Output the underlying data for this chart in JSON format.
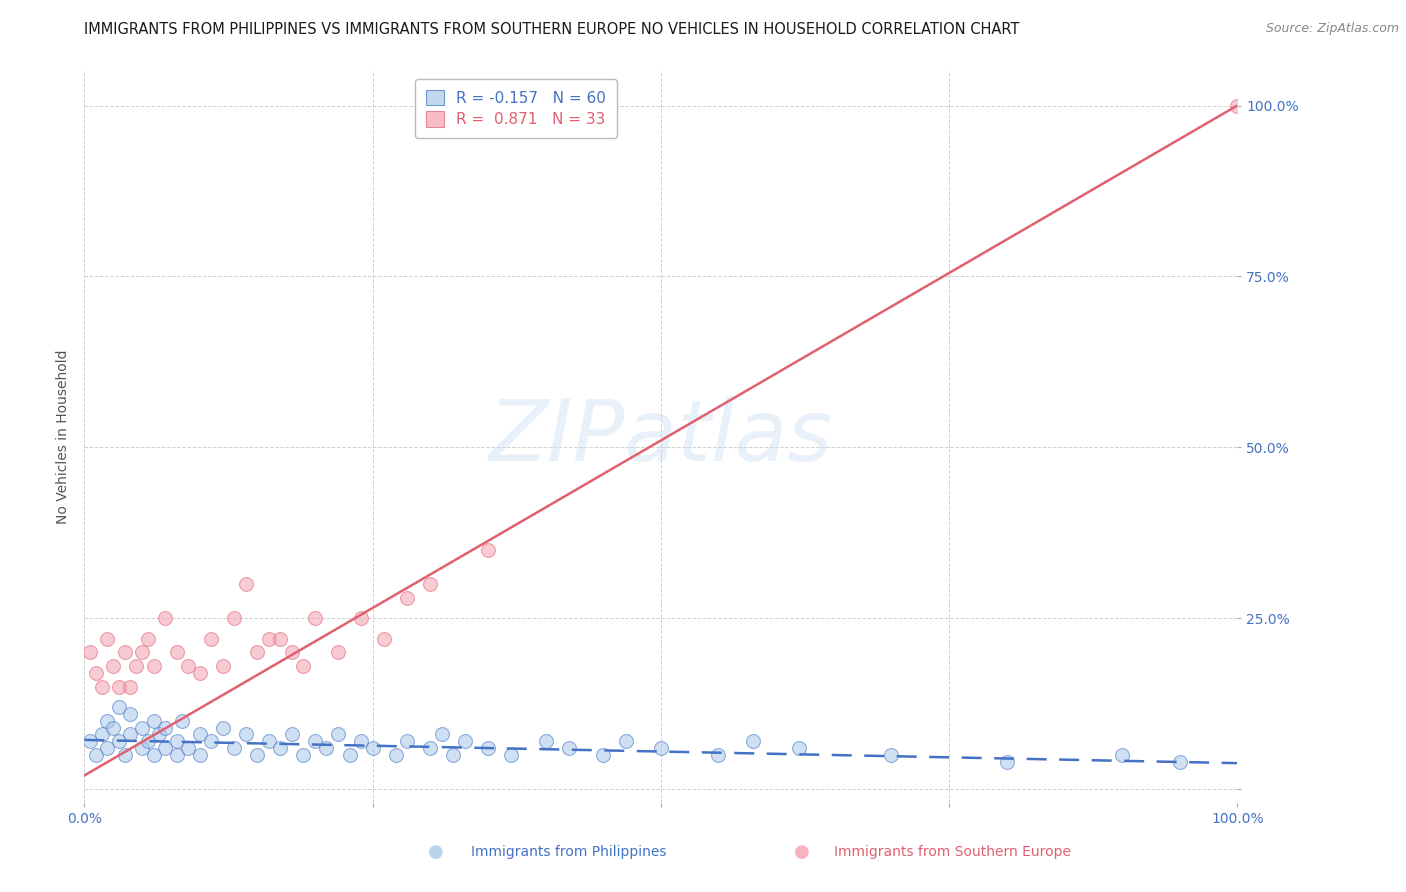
{
  "title": "IMMIGRANTS FROM PHILIPPINES VS IMMIGRANTS FROM SOUTHERN EUROPE NO VEHICLES IN HOUSEHOLD CORRELATION CHART",
  "source": "Source: ZipAtlas.com",
  "ylabel": "No Vehicles in Household",
  "xlim": [
    0.0,
    1.0
  ],
  "ylim": [
    -0.02,
    1.05
  ],
  "blue_R": -0.157,
  "blue_N": 60,
  "pink_R": 0.871,
  "pink_N": 33,
  "blue_color": "#a8c8e8",
  "pink_color": "#f4a0b0",
  "blue_line_color": "#4472c4",
  "pink_line_color": "#e06070",
  "legend_label_blue": "Immigrants from Philippines",
  "legend_label_pink": "Immigrants from Southern Europe",
  "watermark_text": "ZIPatlas",
  "background_color": "#ffffff",
  "grid_color": "#cccccc",
  "blue_scatter_x": [
    0.005,
    0.01,
    0.015,
    0.02,
    0.02,
    0.025,
    0.03,
    0.03,
    0.035,
    0.04,
    0.04,
    0.05,
    0.05,
    0.055,
    0.06,
    0.06,
    0.065,
    0.07,
    0.07,
    0.08,
    0.08,
    0.085,
    0.09,
    0.1,
    0.1,
    0.11,
    0.12,
    0.13,
    0.14,
    0.15,
    0.16,
    0.17,
    0.18,
    0.19,
    0.2,
    0.21,
    0.22,
    0.23,
    0.24,
    0.25,
    0.27,
    0.28,
    0.3,
    0.31,
    0.32,
    0.33,
    0.35,
    0.37,
    0.4,
    0.42,
    0.45,
    0.47,
    0.5,
    0.55,
    0.58,
    0.62,
    0.7,
    0.8,
    0.9,
    0.95
  ],
  "blue_scatter_y": [
    0.07,
    0.05,
    0.08,
    0.06,
    0.1,
    0.09,
    0.07,
    0.12,
    0.05,
    0.08,
    0.11,
    0.06,
    0.09,
    0.07,
    0.1,
    0.05,
    0.08,
    0.06,
    0.09,
    0.07,
    0.05,
    0.1,
    0.06,
    0.08,
    0.05,
    0.07,
    0.09,
    0.06,
    0.08,
    0.05,
    0.07,
    0.06,
    0.08,
    0.05,
    0.07,
    0.06,
    0.08,
    0.05,
    0.07,
    0.06,
    0.05,
    0.07,
    0.06,
    0.08,
    0.05,
    0.07,
    0.06,
    0.05,
    0.07,
    0.06,
    0.05,
    0.07,
    0.06,
    0.05,
    0.07,
    0.06,
    0.05,
    0.04,
    0.05,
    0.04
  ],
  "pink_scatter_x": [
    0.005,
    0.01,
    0.015,
    0.02,
    0.025,
    0.03,
    0.035,
    0.04,
    0.045,
    0.05,
    0.055,
    0.06,
    0.07,
    0.08,
    0.09,
    0.1,
    0.11,
    0.12,
    0.13,
    0.14,
    0.15,
    0.16,
    0.17,
    0.18,
    0.19,
    0.2,
    0.22,
    0.24,
    0.26,
    0.28,
    0.3,
    0.35,
    1.0
  ],
  "pink_scatter_y": [
    0.2,
    0.17,
    0.15,
    0.22,
    0.18,
    0.15,
    0.2,
    0.15,
    0.18,
    0.2,
    0.22,
    0.18,
    0.25,
    0.2,
    0.18,
    0.17,
    0.22,
    0.18,
    0.25,
    0.3,
    0.2,
    0.22,
    0.22,
    0.2,
    0.18,
    0.25,
    0.2,
    0.25,
    0.22,
    0.28,
    0.3,
    0.35,
    1.0
  ],
  "title_fontsize": 10.5,
  "source_fontsize": 9,
  "ylabel_fontsize": 10,
  "legend_fontsize": 11,
  "tick_fontsize": 10,
  "axis_label_color": "#4472c4"
}
